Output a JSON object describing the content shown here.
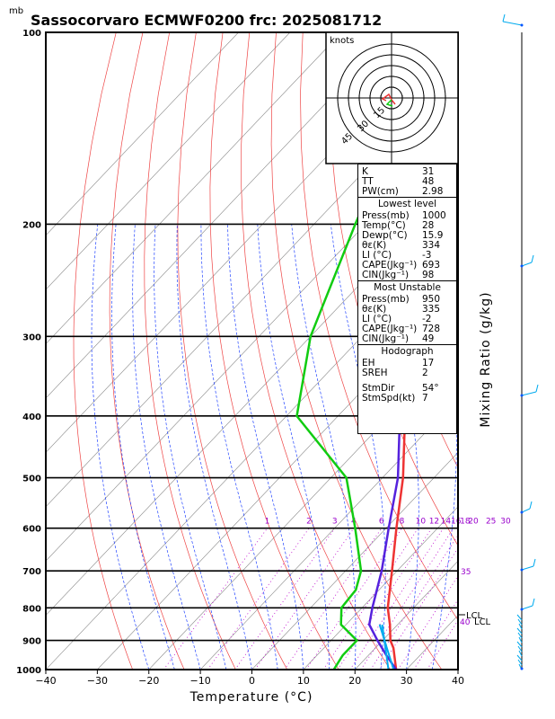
{
  "title": "Sassocorvaro ECMWF0200 frc: 2025081712",
  "pressure_unit": "mb",
  "hodograph_unit": "knots",
  "hodograph_rings": [
    "15",
    "30",
    "45"
  ],
  "colors": {
    "temperature": "#ee3333",
    "dewpoint": "#11cc11",
    "parcel": "#5522dd",
    "isotherm": "#888888",
    "dry_adiabat": "#ee4444",
    "moist_adiabat": "#2244ff",
    "mixing_ratio": "#bb00cc",
    "wind": "#00aaee"
  },
  "panel": {
    "indices": [
      {
        "label": "K",
        "value": "31"
      },
      {
        "label": "TT",
        "value": "48"
      },
      {
        "label": "PW(cm)",
        "value": "2.98"
      }
    ],
    "lowest": {
      "title": "Lowest level",
      "rows": [
        {
          "label": "Press(mb)",
          "value": "1000"
        },
        {
          "label": "Temp(°C)",
          "value": "28"
        },
        {
          "label": "Dewp(°C)",
          "value": "15.9"
        },
        {
          "label": "θε(K)",
          "value": "334"
        },
        {
          "label": "LI (°C)",
          "value": "-3"
        },
        {
          "label": "CAPE(Jkg⁻¹)",
          "value": "693"
        },
        {
          "label": "CIN(Jkg⁻¹)",
          "value": "98"
        }
      ]
    },
    "unstable": {
      "title": "Most Unstable",
      "rows": [
        {
          "label": "Press(mb)",
          "value": "950"
        },
        {
          "label": "θε(K)",
          "value": "335"
        },
        {
          "label": "LI (°C)",
          "value": "-2"
        },
        {
          "label": "CAPE(Jkg⁻¹)",
          "value": "728"
        },
        {
          "label": "CIN(Jkg⁻¹)",
          "value": "49"
        }
      ]
    },
    "hodograph": {
      "title": "Hodograph",
      "rows": [
        {
          "label": "EH",
          "value": "17"
        },
        {
          "label": "SREH",
          "value": "2"
        }
      ],
      "rows2": [
        {
          "label": "StmDir",
          "value": "54°"
        },
        {
          "label": "StmSpd(kt)",
          "value": "7"
        }
      ]
    }
  },
  "chart_data": {
    "type": "line",
    "xlabel": "Temperature (°C)",
    "ylabel": "Mixing Ratio (g/kg)",
    "xlim": [
      -40,
      40
    ],
    "x_ticks": [
      "−40",
      "−30",
      "−20",
      "−10",
      "0",
      "10",
      "20",
      "30",
      "40"
    ],
    "p_levels": [
      100,
      200,
      300,
      400,
      500,
      600,
      700,
      800,
      900,
      1000
    ],
    "pressure_log": true,
    "mixing_ratio_labels": [
      "1",
      "2",
      "3",
      "4",
      "6",
      "8",
      "10",
      "12",
      "14",
      "16",
      "18",
      "20",
      "25",
      "30",
      "35"
    ],
    "lcl_label": "LCL",
    "lcl_marks": [
      "40",
      "LCL"
    ],
    "series": [
      {
        "key": "temperature",
        "points": [
          [
            1000,
            28
          ],
          [
            925,
            23.5
          ],
          [
            900,
            21.5
          ],
          [
            850,
            18.5
          ],
          [
            800,
            15
          ],
          [
            700,
            9
          ],
          [
            600,
            2
          ],
          [
            500,
            -6
          ],
          [
            400,
            -17
          ],
          [
            300,
            -32
          ],
          [
            250,
            -42
          ],
          [
            200,
            -48
          ],
          [
            150,
            -56
          ],
          [
            100,
            -64
          ]
        ]
      },
      {
        "key": "dewpoint",
        "points": [
          [
            1000,
            15.9
          ],
          [
            950,
            15
          ],
          [
            900,
            15
          ],
          [
            850,
            9
          ],
          [
            800,
            6
          ],
          [
            750,
            5.5
          ],
          [
            700,
            3
          ],
          [
            600,
            -6
          ],
          [
            500,
            -17
          ],
          [
            400,
            -38
          ],
          [
            300,
            -50
          ],
          [
            200,
            -62
          ],
          [
            150,
            -70
          ],
          [
            100,
            -80
          ]
        ]
      },
      {
        "key": "parcel",
        "points": [
          [
            1000,
            28
          ],
          [
            950,
            23.5
          ],
          [
            900,
            19
          ],
          [
            850,
            14.5
          ],
          [
            800,
            12
          ],
          [
            700,
            7
          ],
          [
            600,
            0.5
          ],
          [
            500,
            -7
          ],
          [
            400,
            -18
          ],
          [
            300,
            -33
          ],
          [
            200,
            -58
          ],
          [
            150,
            -72
          ],
          [
            100,
            -89
          ]
        ]
      }
    ]
  }
}
